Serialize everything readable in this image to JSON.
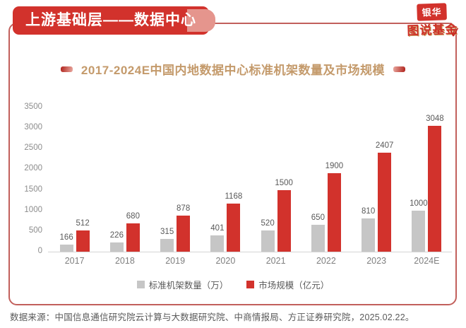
{
  "header": {
    "title": "上游基础层——数据中心"
  },
  "logo": {
    "line1": "银华",
    "line2": "图说基金",
    "check": "✓"
  },
  "chart_data": {
    "type": "bar",
    "title": "2017-2024E中国内地数据中心标准机架数量及市场规模",
    "categories": [
      "2017",
      "2018",
      "2019",
      "2020",
      "2021",
      "2022",
      "2023",
      "2024E"
    ],
    "series": [
      {
        "name": "标准机架数量（万）",
        "color": "#c6c6c6",
        "values": [
          166,
          226,
          315,
          401,
          520,
          650,
          810,
          1000
        ]
      },
      {
        "name": "市场规模（亿元）",
        "color": "#d2322c",
        "values": [
          512,
          680,
          878,
          1168,
          1500,
          1900,
          2407,
          3048
        ]
      }
    ],
    "xlabel": "",
    "ylabel": "",
    "ylim": [
      0,
      3500
    ],
    "yticks": [
      0,
      500,
      1000,
      1500,
      2000,
      2500,
      3000,
      3500
    ],
    "grid": false,
    "legend_position": "bottom",
    "data_labels": true
  },
  "footer": {
    "source": "数据来源：中国信息通信研究院云计算与大数据研究院、中商情报局、方正证券研究院，2025.02.22。"
  },
  "colors": {
    "accent_red": "#d2322c",
    "frame_border": "#c2605c",
    "title_gold": "#c49a6b",
    "axis_text": "#8c8c8c",
    "label_text": "#595959"
  }
}
